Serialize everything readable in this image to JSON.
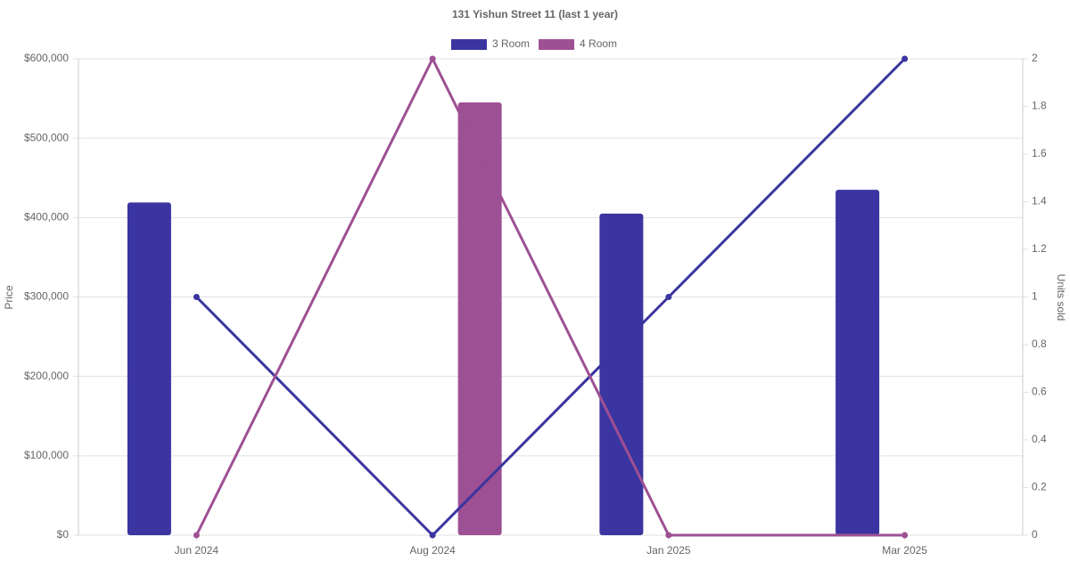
{
  "chart_data": {
    "type": "bar-line",
    "title": "131 Yishun Street 11 (last 1 year)",
    "y_label": "Price",
    "y2_label": "Units sold",
    "categories": [
      "Jun 2024",
      "Aug 2024",
      "Jan 2025",
      "Mar 2025"
    ],
    "series": [
      {
        "name": "3 Room",
        "color": "#3a35a0",
        "values": [
          419000,
          null,
          405000,
          435000
        ],
        "units_sold": [
          1,
          0,
          1,
          2
        ]
      },
      {
        "name": "4 Room",
        "color": "#9e5094",
        "values": [
          null,
          545000,
          null,
          null
        ],
        "units_sold": [
          0,
          2,
          0,
          0
        ]
      }
    ],
    "ylim": [
      0,
      600000
    ],
    "yticks": [
      {
        "value": 0,
        "label": "$0"
      },
      {
        "value": 100000,
        "label": "$100,000"
      },
      {
        "value": 200000,
        "label": "$200,000"
      },
      {
        "value": 300000,
        "label": "$300,000"
      },
      {
        "value": 400000,
        "label": "$400,000"
      },
      {
        "value": 500000,
        "label": "$500,000"
      },
      {
        "value": 600000,
        "label": "$600,000"
      }
    ],
    "y2lim": [
      0,
      2
    ],
    "y2ticks": [
      0,
      0.2,
      0.4,
      0.6,
      0.8,
      1,
      1.2,
      1.4,
      1.6,
      1.8,
      2
    ],
    "grid": true
  }
}
